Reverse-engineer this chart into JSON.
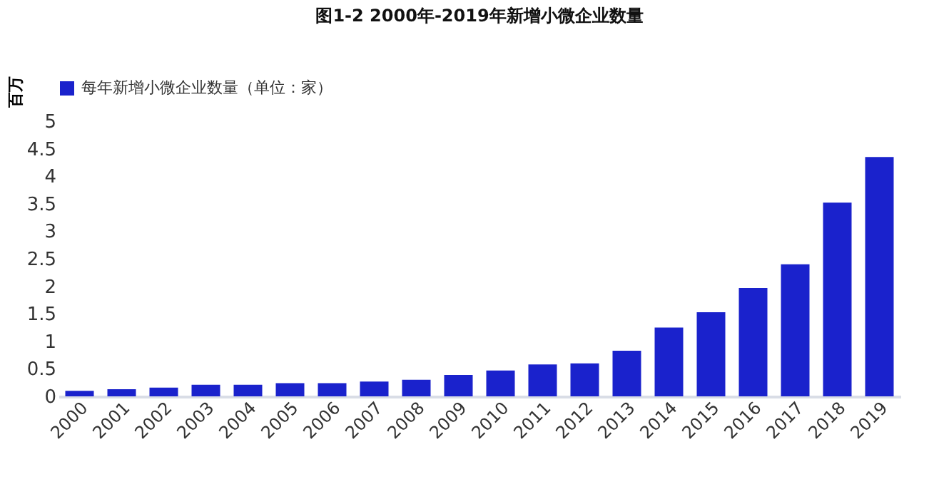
{
  "chart_data": {
    "type": "bar",
    "title": "图1-2 2000年-2019年新增小微企业数量",
    "ylabel": "百万",
    "categories": [
      "2000",
      "2001",
      "2002",
      "2003",
      "2004",
      "2005",
      "2006",
      "2007",
      "2008",
      "2009",
      "2010",
      "2011",
      "2012",
      "2013",
      "2014",
      "2015",
      "2016",
      "2017",
      "2018",
      "2019"
    ],
    "series": [
      {
        "name": "每年新增小微企业数量（单位：家）",
        "color": "#1a22cc",
        "values": [
          0.1,
          0.13,
          0.16,
          0.21,
          0.21,
          0.24,
          0.24,
          0.27,
          0.3,
          0.39,
          0.47,
          0.58,
          0.6,
          0.83,
          1.25,
          1.53,
          1.97,
          2.4,
          3.52,
          4.35
        ]
      }
    ],
    "ylim": [
      0,
      5
    ],
    "yticks": [
      0,
      0.5,
      1,
      1.5,
      2,
      2.5,
      3,
      3.5,
      4,
      4.5,
      5
    ],
    "grid": false,
    "legend": "top"
  }
}
